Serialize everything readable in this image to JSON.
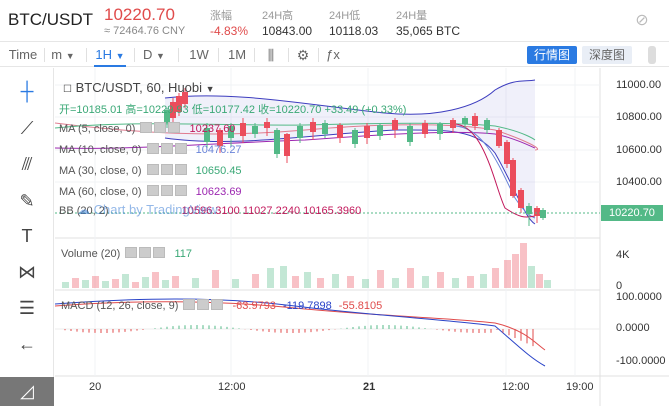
{
  "header": {
    "pair": "BTC/USDT",
    "price": "10220.70",
    "cny": "≈ 72464.76 CNY",
    "stats": [
      {
        "label": "涨幅",
        "value": "-4.83%"
      },
      {
        "label": "24H高",
        "value": "10843.00"
      },
      {
        "label": "24H低",
        "value": "10118.03"
      },
      {
        "label": "24H量",
        "value": "35,065 BTC"
      }
    ],
    "icon": "theme-toggle-icon"
  },
  "toolbar": {
    "items": [
      "Time",
      "m",
      "1H",
      "D",
      "1W",
      "1M"
    ],
    "active": "1H",
    "btn_chart": "行情图",
    "btn_depth": "深度图"
  },
  "legend": {
    "title": "BTC/USDT, 60, Huobi",
    "ohlc": "开=10185.01  高=10229.93  低=10177.42  收=10220.70  +33.49 (+0.33%)",
    "ma5": "MA (5, close, 0)",
    "ma5_val": "10237.60",
    "ma10": "MA (10, close, 0)",
    "ma10_val": "10476.27",
    "ma30": "MA (30, close, 0)",
    "ma30_val": "10650.45",
    "ma60": "MA (60, close, 0)",
    "ma60_val": "10623.69",
    "bb": "BB (20, 2)",
    "bb_val": "10596.3100  11027.2240  10165.3960",
    "watermark": "Chart by TradingView",
    "volume": "Volume (20)",
    "volume_val": "117",
    "macd": "MACD (12, 26, close, 9)",
    "macd_v1": "-63.9793",
    "macd_v2": "-119.7898",
    "macd_v3": "-55.8105"
  },
  "price_axis": [
    "11000.00",
    "10800.00",
    "10600.00",
    "10400.00",
    "10220.70"
  ],
  "volume_axis": [
    "4K",
    "0"
  ],
  "macd_axis": [
    "100.0000",
    "0.0000",
    "-100.0000"
  ],
  "time_axis": [
    "20",
    "12:00",
    "21",
    "12:00",
    "19:00"
  ],
  "colors": {
    "up": "#53b987",
    "down": "#eb4d5c",
    "accent": "#2a7ae2"
  }
}
